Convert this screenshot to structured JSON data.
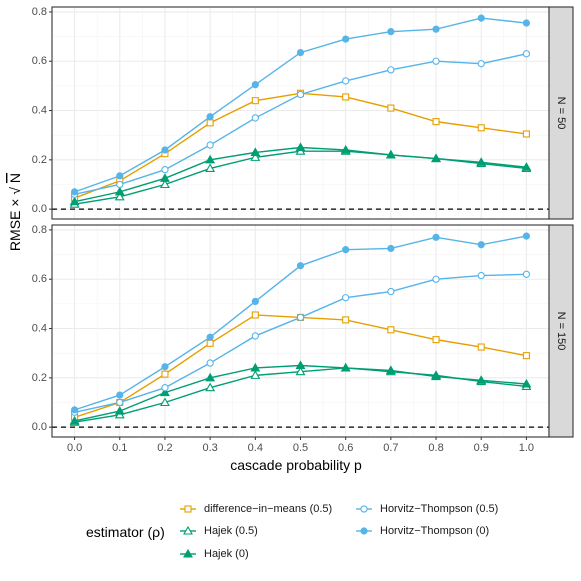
{
  "chart_data": {
    "type": "line",
    "facet_layout": "vertical",
    "x": [
      0.0,
      0.1,
      0.2,
      0.3,
      0.4,
      0.5,
      0.6,
      0.7,
      0.8,
      0.9,
      1.0
    ],
    "x_tick_labels": [
      "0.0",
      "0.1",
      "0.2",
      "0.3",
      "0.4",
      "0.5",
      "0.6",
      "0.7",
      "0.8",
      "0.9",
      "1.0"
    ],
    "xlabel": "cascade probability p",
    "ylabel_prefix": "RMSE",
    "ylabel_times": "×",
    "ylabel_root": "√",
    "ylabel_var": "N",
    "xlim": [
      -0.05,
      1.05
    ],
    "ylim": [
      -0.04,
      0.82
    ],
    "y_ticks": [
      0.0,
      0.2,
      0.4,
      0.6,
      0.8
    ],
    "y_tick_labels": [
      "0.0",
      "0.2",
      "0.4",
      "0.6",
      "0.8"
    ],
    "reference_line": 0,
    "grid": true,
    "legend_title": "estimator (ρ)",
    "legend_position": "bottom",
    "series_styles": [
      {
        "name": "difference−in−means (0.5)",
        "color": "#E69F00",
        "marker": "open-square"
      },
      {
        "name": "Hajek (0.5)",
        "color": "#009E73",
        "marker": "open-triangle"
      },
      {
        "name": "Hajek (0)",
        "color": "#009E73",
        "marker": "filled-triangle"
      },
      {
        "name": "Horvitz−Thompson (0.5)",
        "color": "#56B4E9",
        "marker": "open-circle"
      },
      {
        "name": "Horvitz−Thompson (0)",
        "color": "#56B4E9",
        "marker": "filled-circle"
      }
    ],
    "panels": [
      {
        "label": "N = 50",
        "series": [
          {
            "values": [
              0.045,
              0.115,
              0.225,
              0.35,
              0.44,
              0.47,
              0.455,
              0.41,
              0.355,
              0.33,
              0.305
            ]
          },
          {
            "values": [
              0.02,
              0.05,
              0.1,
              0.165,
              0.21,
              0.235,
              0.235,
              0.22,
              0.205,
              0.185,
              0.165
            ]
          },
          {
            "values": [
              0.03,
              0.07,
              0.125,
              0.2,
              0.23,
              0.25,
              0.24,
              0.22,
              0.205,
              0.19,
              0.17
            ]
          },
          {
            "values": [
              0.06,
              0.1,
              0.16,
              0.26,
              0.37,
              0.465,
              0.52,
              0.565,
              0.6,
              0.59,
              0.63
            ]
          },
          {
            "values": [
              0.07,
              0.135,
              0.24,
              0.375,
              0.505,
              0.635,
              0.69,
              0.72,
              0.73,
              0.775,
              0.755
            ]
          }
        ]
      },
      {
        "label": "N = 150",
        "series": [
          {
            "values": [
              0.04,
              0.1,
              0.215,
              0.34,
              0.455,
              0.445,
              0.435,
              0.395,
              0.355,
              0.325,
              0.29
            ]
          },
          {
            "values": [
              0.02,
              0.05,
              0.1,
              0.16,
              0.21,
              0.225,
              0.24,
              0.225,
              0.21,
              0.185,
              0.165
            ]
          },
          {
            "values": [
              0.025,
              0.065,
              0.14,
              0.2,
              0.24,
              0.25,
              0.24,
              0.23,
              0.205,
              0.19,
              0.175
            ]
          },
          {
            "values": [
              0.06,
              0.1,
              0.16,
              0.26,
              0.37,
              0.445,
              0.525,
              0.55,
              0.6,
              0.615,
              0.62
            ]
          },
          {
            "values": [
              0.07,
              0.13,
              0.245,
              0.365,
              0.51,
              0.655,
              0.72,
              0.725,
              0.77,
              0.74,
              0.775
            ]
          }
        ]
      }
    ]
  }
}
